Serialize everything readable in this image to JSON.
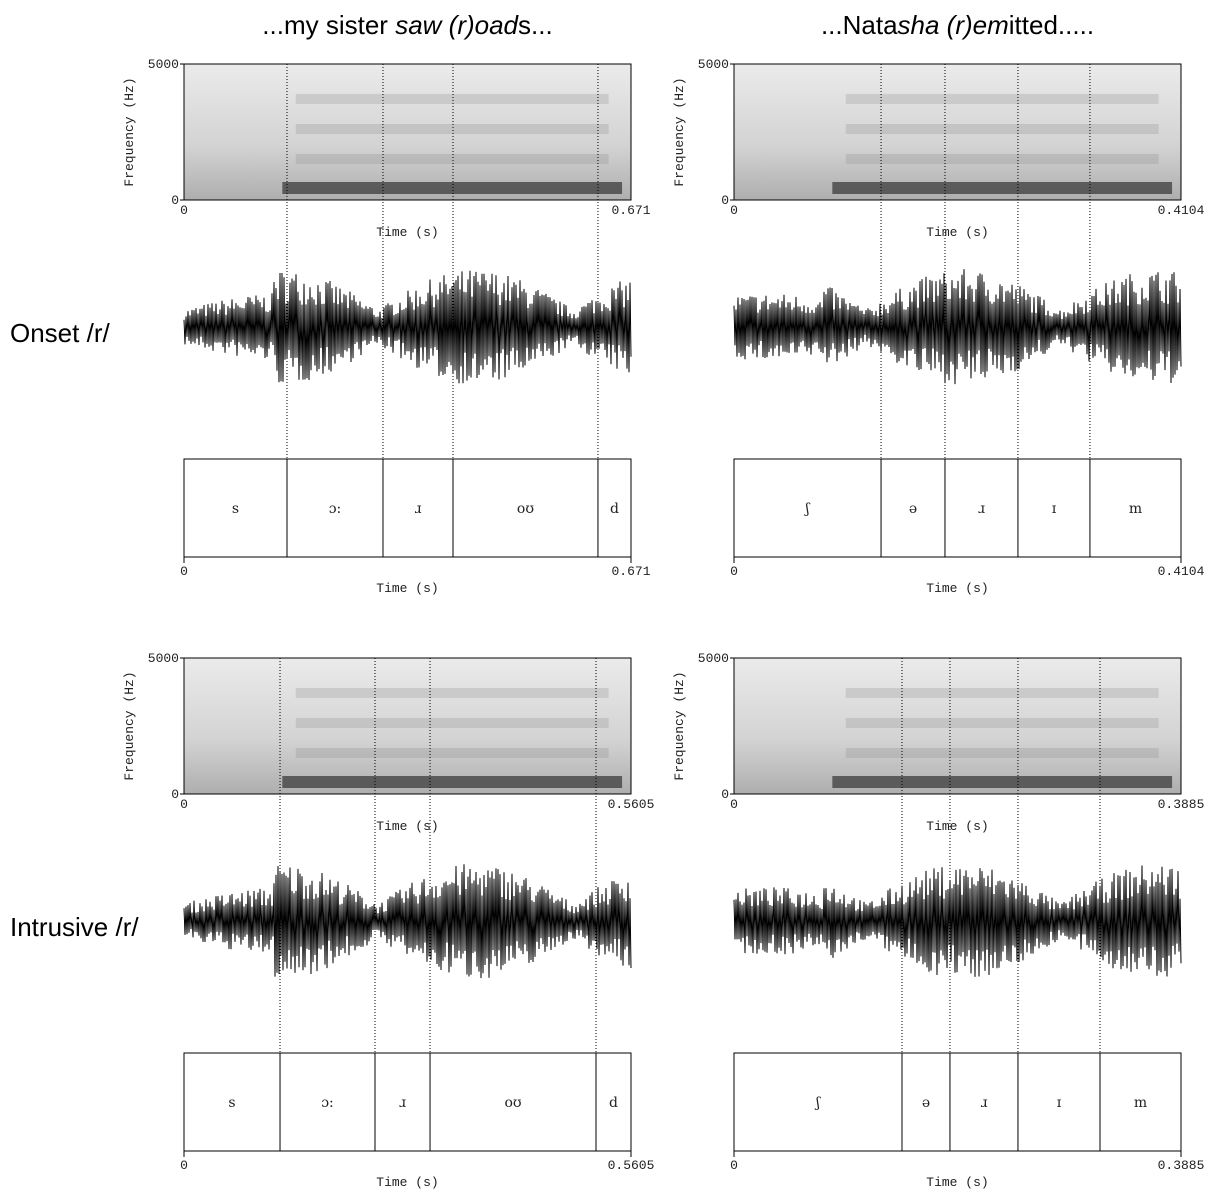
{
  "columns": [
    {
      "title": [
        {
          "text": "...my sister "
        },
        {
          "text": "saw (r)oad",
          "italic": true
        },
        {
          "text": "s..."
        }
      ]
    },
    {
      "title": [
        {
          "text": "...Nata"
        },
        {
          "text": "sha (r)em",
          "italic": true
        },
        {
          "text": "itted....."
        }
      ]
    }
  ],
  "rows": [
    {
      "label": "Onset /r/",
      "panels": [
        {
          "freq_label": "Frequency (Hz)",
          "freq_ticks": [
            0,
            5000
          ],
          "time_label": "Time (s)",
          "time_range": [
            0,
            0.671
          ],
          "boundaries": [
            0.1546,
            0.2987,
            0.4038,
            0.6214
          ],
          "segments": [
            "s",
            "ɔ:",
            "ɹ",
            "oʊ",
            "d"
          ]
        },
        {
          "freq_label": "Frequency (Hz)",
          "freq_ticks": [
            0,
            5000
          ],
          "time_label": "Time (s)",
          "time_range": [
            0,
            0.4104
          ],
          "boundaries": [
            0.135,
            0.1937,
            0.2607,
            0.3268
          ],
          "segments": [
            "ʃ",
            "ə",
            "ɹ",
            "ɪ",
            "m"
          ]
        }
      ]
    },
    {
      "label": "Intrusive /r/",
      "panels": [
        {
          "freq_label": "Frequency (Hz)",
          "freq_ticks": [
            0,
            5000
          ],
          "time_label": "Time (s)",
          "time_range": [
            0,
            0.5605
          ],
          "boundaries": [
            0.1204,
            0.2395,
            0.3085,
            0.5166
          ],
          "segments": [
            "s",
            "ɔ:",
            "ɹ",
            "oʊ",
            "d"
          ]
        },
        {
          "freq_label": "Frequency (Hz)",
          "freq_ticks": [
            0,
            5000
          ],
          "time_label": "Time (s)",
          "time_range": [
            0,
            0.3885
          ],
          "boundaries": [
            0.146,
            0.1877,
            0.2468,
            0.3181
          ],
          "segments": [
            "ʃ",
            "ə",
            "ɹ",
            "ɪ",
            "m"
          ]
        }
      ]
    }
  ]
}
